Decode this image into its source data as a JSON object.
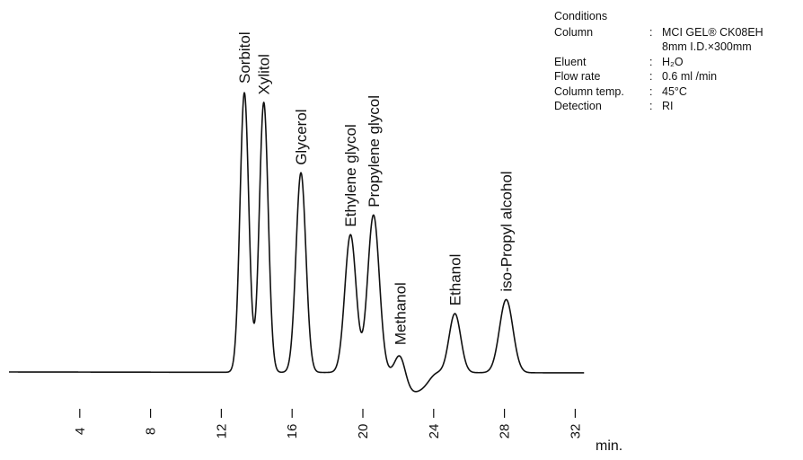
{
  "chart_data": {
    "type": "line",
    "title": "",
    "xlabel": "",
    "x_unit": "min.",
    "ylabel": "",
    "xlim": [
      0,
      32.5
    ],
    "x_ticks": [
      4,
      8,
      12,
      16,
      20,
      24,
      28,
      32
    ],
    "tick_labels": [
      "4",
      "8",
      "12",
      "16",
      "20",
      "24",
      "28",
      "32"
    ],
    "grid": false,
    "peaks": [
      {
        "name": "Sorbitol",
        "rt": 13.3,
        "height": 100
      },
      {
        "name": "Xylitol",
        "rt": 14.4,
        "height": 96
      },
      {
        "name": "Glycerol",
        "rt": 16.5,
        "height": 71
      },
      {
        "name": "Ethylene glycol",
        "rt": 19.3,
        "height": 49
      },
      {
        "name": "Propylene glycol",
        "rt": 20.6,
        "height": 56
      },
      {
        "name": "Methanol",
        "rt": 22.1,
        "height": 7
      },
      {
        "name": "Ethanol",
        "rt": 25.2,
        "height": 21
      },
      {
        "name": "iso-Propyl alcohol",
        "rt": 28.1,
        "height": 26
      }
    ]
  },
  "conditions": {
    "title": "Conditions",
    "rows": [
      {
        "key": "Column",
        "value": "MCI GEL®  CK08EH"
      },
      {
        "key": "",
        "value": "8mm I.D.×300mm"
      },
      {
        "key": "Eluent",
        "value": "H₂O"
      },
      {
        "key": "Flow rate",
        "value": "0.6 ml /min"
      },
      {
        "key": "Column temp.",
        "value": "45°C"
      },
      {
        "key": "Detection",
        "value": "RI"
      }
    ]
  }
}
